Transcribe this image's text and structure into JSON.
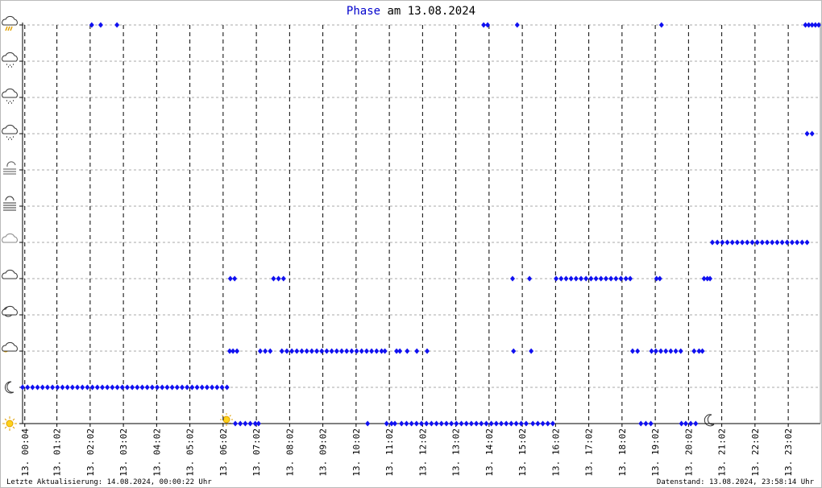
{
  "chart_data": {
    "type": "scatter",
    "title_prefix": "Phase",
    "title": "am 13.08.2024",
    "footer_left": "Letzte Aktualisierung: 14.08.2024, 00:00:22 Uhr",
    "footer_right": "Datenstand: 13.08.2024, 23:58:14 Uhr",
    "color": "#1010f0",
    "xlim": [
      0,
      24
    ],
    "ylim": [
      0,
      11
    ],
    "yticks": [
      0,
      1,
      2,
      3,
      4,
      5,
      6,
      7,
      8,
      9,
      10,
      11
    ],
    "xticks": [
      {
        "value": 0.067,
        "label": "13. 00:04"
      },
      {
        "value": 1.033,
        "label": "13. 01:02"
      },
      {
        "value": 2.033,
        "label": "13. 02:02"
      },
      {
        "value": 3.033,
        "label": "13. 03:02"
      },
      {
        "value": 4.033,
        "label": "13. 04:02"
      },
      {
        "value": 5.033,
        "label": "13. 05:02"
      },
      {
        "value": 6.033,
        "label": "13. 06:02"
      },
      {
        "value": 7.033,
        "label": "13. 07:02"
      },
      {
        "value": 8.033,
        "label": "13. 08:02"
      },
      {
        "value": 9.033,
        "label": "13. 09:02"
      },
      {
        "value": 10.033,
        "label": "13. 10:02"
      },
      {
        "value": 11.033,
        "label": "13. 11:02"
      },
      {
        "value": 12.033,
        "label": "13. 12:02"
      },
      {
        "value": 13.033,
        "label": "13. 13:02"
      },
      {
        "value": 14.033,
        "label": "13. 14:02"
      },
      {
        "value": 15.033,
        "label": "13. 15:02"
      },
      {
        "value": 16.033,
        "label": "13. 16:02"
      },
      {
        "value": 17.033,
        "label": "13. 17:02"
      },
      {
        "value": 18.033,
        "label": "13. 18:02"
      },
      {
        "value": 19.033,
        "label": "13. 19:02"
      },
      {
        "value": 20.033,
        "label": "13. 20:02"
      },
      {
        "value": 21.033,
        "label": "13. 21:02"
      },
      {
        "value": 22.033,
        "label": "13. 22:02"
      },
      {
        "value": 23.033,
        "label": "13. 23:02"
      }
    ],
    "grid": true,
    "x": [
      0,
      0.15,
      0.3,
      0.45,
      0.6,
      0.75,
      0.9,
      1.05,
      1.2,
      1.35,
      1.5,
      1.65,
      1.8,
      1.95,
      2.1,
      2.25,
      2.4,
      2.55,
      2.7,
      2.85,
      3,
      3.15,
      3.3,
      3.45,
      3.6,
      3.75,
      3.9,
      4.05,
      4.2,
      4.35,
      4.5,
      4.65,
      4.8,
      4.95,
      5.1,
      5.25,
      5.4,
      5.55,
      5.7,
      5.85,
      6,
      6.15,
      2.08,
      2.35,
      2.84,
      6.25,
      6.38,
      6.23,
      6.33,
      6.45,
      6.4,
      6.55,
      6.7,
      6.85,
      7,
      7.1,
      7.15,
      7.3,
      7.45,
      7.55,
      7.7,
      7.85,
      7.8,
      7.95,
      8.1,
      8.25,
      8.4,
      8.55,
      8.7,
      8.85,
      9,
      9.15,
      9.3,
      9.45,
      9.6,
      9.75,
      9.9,
      10.05,
      10.2,
      10.35,
      10.5,
      10.65,
      10.8,
      10.9,
      10.38,
      10.95,
      11.1,
      11.2,
      11.25,
      11.35,
      11.4,
      11.55,
      11.7,
      11.57,
      11.86,
      12.17,
      11.85,
      12,
      12.15,
      12.3,
      12.45,
      12.6,
      12.75,
      12.9,
      13.05,
      13.2,
      13.35,
      13.5,
      13.65,
      13.8,
      13.95,
      14.1,
      14.25,
      14.4,
      14.55,
      14.7,
      13.87,
      13.99,
      14.88,
      14.74,
      15.25,
      14.77,
      15.3,
      14.85,
      15,
      15.15,
      15.35,
      15.5,
      15.65,
      15.8,
      15.95,
      16.05,
      16.2,
      16.35,
      16.5,
      16.65,
      16.8,
      16.95,
      17.1,
      17.25,
      17.4,
      17.55,
      17.7,
      17.85,
      18,
      18.15,
      18.28,
      18.35,
      18.5,
      18.6,
      18.75,
      18.9,
      18.92,
      19.05,
      19.07,
      19.17,
      19.22,
      19.2,
      19.35,
      19.5,
      19.65,
      19.8,
      19.82,
      19.95,
      20.1,
      20.25,
      20.2,
      20.35,
      20.45,
      20.5,
      20.6,
      20.68,
      20.75,
      20.9,
      21.05,
      21.2,
      21.35,
      21.5,
      21.65,
      21.8,
      21.95,
      22.1,
      22.25,
      22.4,
      22.55,
      22.7,
      22.85,
      23,
      23.15,
      23.3,
      23.45,
      23.6,
      23.6,
      23.75,
      23.55,
      23.65,
      23.75,
      23.85,
      23.95
    ],
    "values": [
      1,
      1,
      1,
      1,
      1,
      1,
      1,
      1,
      1,
      1,
      1,
      1,
      1,
      1,
      1,
      1,
      1,
      1,
      1,
      1,
      1,
      1,
      1,
      1,
      1,
      1,
      1,
      1,
      1,
      1,
      1,
      1,
      1,
      1,
      1,
      1,
      1,
      1,
      1,
      1,
      1,
      1,
      11,
      11,
      11,
      4,
      4,
      2,
      2,
      2,
      0,
      0,
      0,
      0,
      0,
      0,
      2,
      2,
      2,
      4,
      4,
      4,
      2,
      2,
      2,
      2,
      2,
      2,
      2,
      2,
      2,
      2,
      2,
      2,
      2,
      2,
      2,
      2,
      2,
      2,
      2,
      2,
      2,
      2,
      0,
      0,
      0,
      0,
      2,
      2,
      0,
      0,
      0,
      2,
      2,
      2,
      0,
      0,
      0,
      0,
      0,
      0,
      0,
      0,
      0,
      0,
      0,
      0,
      0,
      0,
      0,
      0,
      0,
      0,
      0,
      0,
      11,
      11,
      11,
      4,
      4,
      2,
      2,
      0,
      0,
      0,
      0,
      0,
      0,
      0,
      0,
      4,
      4,
      4,
      4,
      4,
      4,
      4,
      4,
      4,
      4,
      4,
      4,
      4,
      4,
      4,
      4,
      2,
      2,
      0,
      0,
      0,
      2,
      2,
      4,
      4,
      11,
      2,
      2,
      2,
      2,
      2,
      0,
      0,
      0,
      0,
      2,
      2,
      2,
      4,
      4,
      4,
      5,
      5,
      5,
      5,
      5,
      5,
      5,
      5,
      5,
      5,
      5,
      5,
      5,
      5,
      5,
      5,
      5,
      5,
      5,
      5,
      8,
      8,
      11,
      11,
      11,
      11,
      11
    ]
  }
}
